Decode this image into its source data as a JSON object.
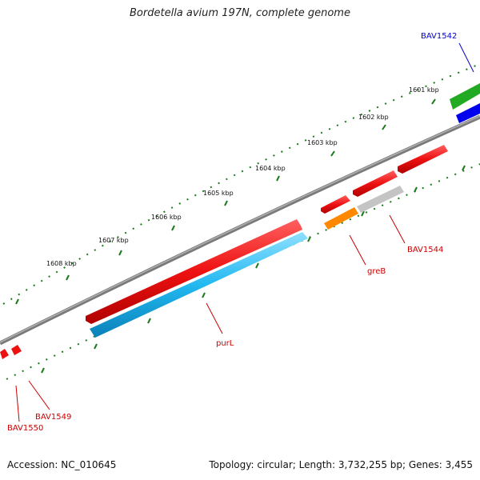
{
  "title": "Bordetella avium 197N, complete genome",
  "footer": {
    "accession": "Accession: NC_010645",
    "summary": "Topology: circular; Length: 3,732,255 bp; Genes: 3,455"
  },
  "colors": {
    "backbone": "#808080",
    "ticks": "#1a7a1a",
    "gene_label_red": "#cc0000",
    "gene_label_blue": "#0000cc",
    "gene_red": "#ee1111",
    "gene_cyan": "#22b8f0",
    "gene_orange": "#ff8800",
    "gene_grey": "#c0c0c0",
    "gene_green": "#22aa22",
    "gene_blue": "#0000ee"
  },
  "kbp_labels": [
    "1601 kbp",
    "1602 kbp",
    "1603 kbp",
    "1604 kbp",
    "1605 kbp",
    "1606 kbp",
    "1607 kbp",
    "1608 kbp"
  ],
  "gene_labels": {
    "bav1542": "BAV1542",
    "bav1544": "BAV1544",
    "greB": "greB",
    "purL": "purL",
    "bav1549": "BAV1549",
    "bav1550": "BAV1550"
  }
}
